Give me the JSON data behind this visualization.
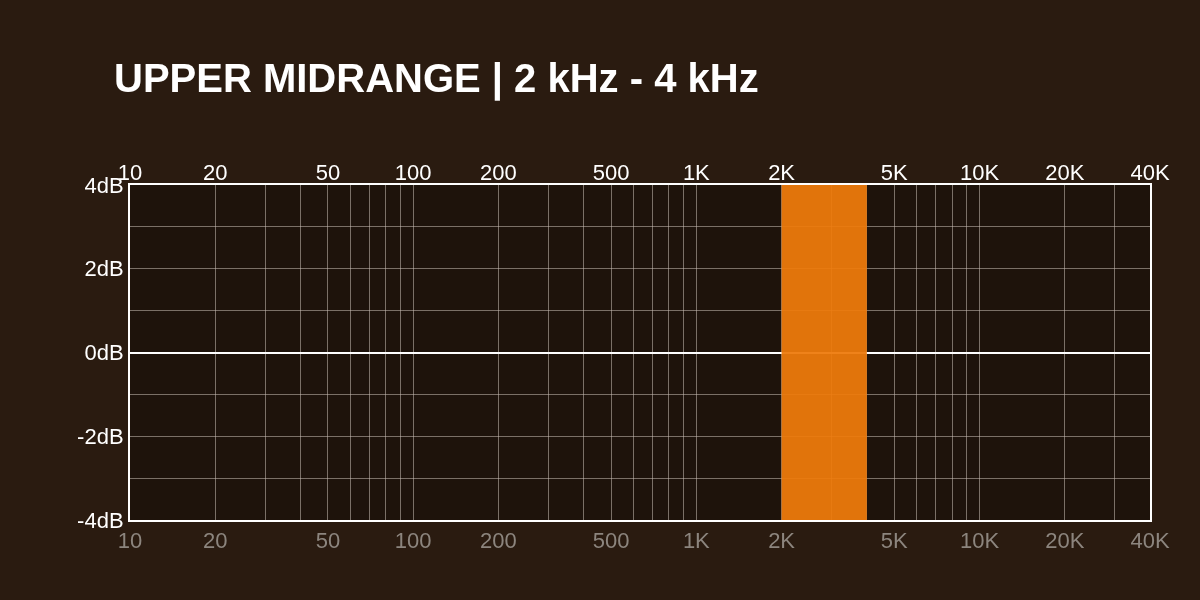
{
  "chart_data": {
    "type": "line",
    "title": "UPPER MIDRANGE | 2 kHz - 4 kHz",
    "log": "x",
    "xlim": [
      10,
      40000
    ],
    "xticks": [
      {
        "value": 10,
        "label": "10"
      },
      {
        "value": 20,
        "label": "20"
      },
      {
        "value": 30,
        "label": null
      },
      {
        "value": 40,
        "label": null
      },
      {
        "value": 50,
        "label": "50"
      },
      {
        "value": 60,
        "label": null
      },
      {
        "value": 70,
        "label": null
      },
      {
        "value": 80,
        "label": null
      },
      {
        "value": 90,
        "label": null
      },
      {
        "value": 100,
        "label": "100"
      },
      {
        "value": 200,
        "label": "200"
      },
      {
        "value": 300,
        "label": null
      },
      {
        "value": 400,
        "label": null
      },
      {
        "value": 500,
        "label": "500"
      },
      {
        "value": 600,
        "label": null
      },
      {
        "value": 700,
        "label": null
      },
      {
        "value": 800,
        "label": null
      },
      {
        "value": 900,
        "label": null
      },
      {
        "value": 1000,
        "label": "1K"
      },
      {
        "value": 2000,
        "label": "2K"
      },
      {
        "value": 3000,
        "label": null
      },
      {
        "value": 4000,
        "label": null
      },
      {
        "value": 5000,
        "label": "5K"
      },
      {
        "value": 6000,
        "label": null
      },
      {
        "value": 7000,
        "label": null
      },
      {
        "value": 8000,
        "label": null
      },
      {
        "value": 9000,
        "label": null
      },
      {
        "value": 10000,
        "label": "10K"
      },
      {
        "value": 20000,
        "label": "20K"
      },
      {
        "value": 30000,
        "label": null
      },
      {
        "value": 40000,
        "label": "40K"
      }
    ],
    "ylim": [
      -4,
      4
    ],
    "yticks": [
      {
        "value": -4,
        "label": "-4dB"
      },
      {
        "value": -3,
        "label": null
      },
      {
        "value": -2,
        "label": "-2dB"
      },
      {
        "value": -1,
        "label": null
      },
      {
        "value": 0,
        "label": "0dB"
      },
      {
        "value": 1,
        "label": null
      },
      {
        "value": 2,
        "label": "2dB"
      },
      {
        "value": 3,
        "label": null
      },
      {
        "value": 4,
        "label": "4dB"
      }
    ],
    "grid": true,
    "bands": [
      {
        "axis": "x",
        "from": 2000,
        "to": 4000,
        "color": "#ee7a0c"
      }
    ]
  }
}
